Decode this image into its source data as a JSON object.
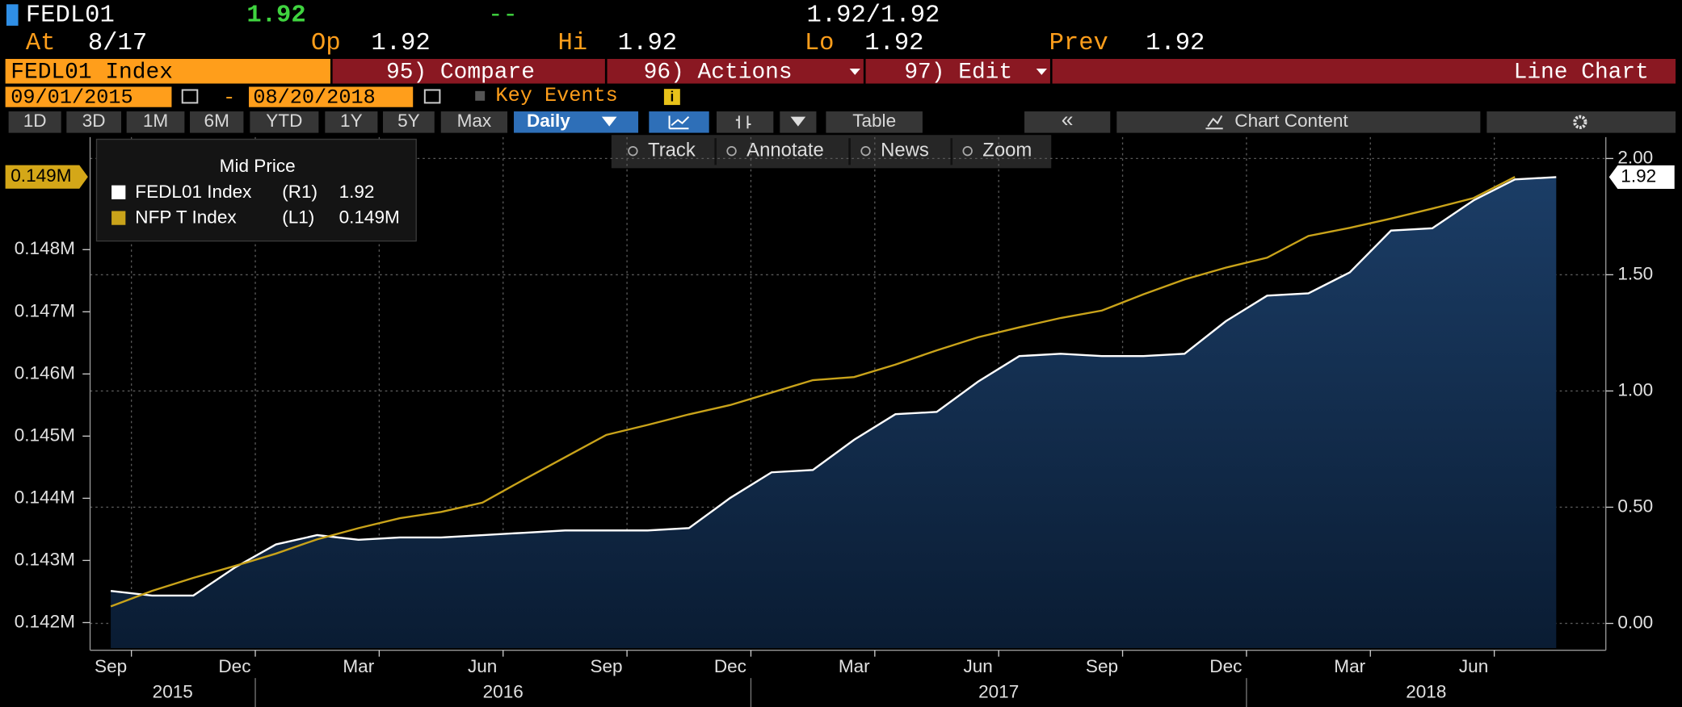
{
  "header": {
    "ticker": "FEDL01",
    "last": "1.92",
    "change": "--",
    "bid_ask": "1.92/1.92",
    "at_label": "At",
    "at": "8/17",
    "open_label": "Op",
    "open": "1.92",
    "high_label": "Hi",
    "high": "1.92",
    "low_label": "Lo",
    "low": "1.92",
    "prev_label": "Prev",
    "prev": "1.92"
  },
  "menu": {
    "security": "FEDL01 Index",
    "compare": "95) Compare",
    "actions": "96) Actions",
    "edit": "97) Edit",
    "view": "Line Chart"
  },
  "range": {
    "start": "09/01/2015",
    "separator": "-",
    "end": "08/20/2018",
    "key_events": "Key Events",
    "info": "i"
  },
  "periods": [
    "1D",
    "3D",
    "1M",
    "6M",
    "YTD",
    "1Y",
    "5Y",
    "Max"
  ],
  "tools": {
    "frequency": "Daily",
    "table": "Table",
    "collapse": "«",
    "content": "Chart Content"
  },
  "chart_tools": [
    "Track",
    "Annotate",
    "News",
    "Zoom"
  ],
  "chart_data": {
    "type": "line",
    "legend_title": "Mid Price",
    "x": [
      "2015-09",
      "2015-10",
      "2015-11",
      "2015-12",
      "2016-01",
      "2016-02",
      "2016-03",
      "2016-04",
      "2016-05",
      "2016-06",
      "2016-07",
      "2016-08",
      "2016-09",
      "2016-10",
      "2016-11",
      "2016-12",
      "2017-01",
      "2017-02",
      "2017-03",
      "2017-04",
      "2017-05",
      "2017-06",
      "2017-07",
      "2017-08",
      "2017-09",
      "2017-10",
      "2017-11",
      "2017-12",
      "2018-01",
      "2018-02",
      "2018-03",
      "2018-04",
      "2018-05",
      "2018-06",
      "2018-07",
      "2018-08"
    ],
    "xticks": [
      {
        "value": "2015-09",
        "label": "Sep"
      },
      {
        "value": "2015-12",
        "label": "Dec"
      },
      {
        "value": "2016-03",
        "label": "Mar"
      },
      {
        "value": "2016-06",
        "label": "Jun"
      },
      {
        "value": "2016-09",
        "label": "Sep"
      },
      {
        "value": "2016-12",
        "label": "Dec"
      },
      {
        "value": "2017-03",
        "label": "Mar"
      },
      {
        "value": "2017-06",
        "label": "Jun"
      },
      {
        "value": "2017-09",
        "label": "Sep"
      },
      {
        "value": "2017-12",
        "label": "Dec"
      },
      {
        "value": "2018-03",
        "label": "Mar"
      },
      {
        "value": "2018-06",
        "label": "Jun"
      }
    ],
    "x_years": [
      "2015",
      "2016",
      "2017",
      "2018"
    ],
    "ylim": [
      0.14159,
      0.14981
    ],
    "yticks": [
      {
        "value": 0.142,
        "label": "0.142M"
      },
      {
        "value": 0.143,
        "label": "0.143M"
      },
      {
        "value": 0.144,
        "label": "0.144M"
      },
      {
        "value": 0.145,
        "label": "0.145M"
      },
      {
        "value": 0.146,
        "label": "0.146M"
      },
      {
        "value": 0.147,
        "label": "0.147M"
      },
      {
        "value": 0.148,
        "label": "0.148M"
      }
    ],
    "y2lim": [
      -0.106,
      2.092
    ],
    "y2ticks": [
      {
        "value": 0,
        "label": "0.00"
      },
      {
        "value": 0.5,
        "label": "0.50"
      },
      {
        "value": 1,
        "label": "1.00"
      },
      {
        "value": 1.5,
        "label": "1.50"
      },
      {
        "value": 2,
        "label": "2.00"
      }
    ],
    "grid": true,
    "series": [
      {
        "name": "FEDL01 Index",
        "axis_tag": "(R1)",
        "last_label": "1.92",
        "axis": "y2",
        "color": "#ffffff",
        "area": true,
        "values": [
          0.14,
          0.12,
          0.12,
          0.24,
          0.34,
          0.38,
          0.36,
          0.37,
          0.37,
          0.38,
          0.39,
          0.4,
          0.4,
          0.4,
          0.41,
          0.54,
          0.65,
          0.66,
          0.79,
          0.9,
          0.91,
          1.04,
          1.15,
          1.16,
          1.15,
          1.15,
          1.16,
          1.3,
          1.41,
          1.42,
          1.51,
          1.69,
          1.7,
          1.82,
          1.91,
          1.92
        ]
      },
      {
        "name": "NFP T Index",
        "axis_tag": "(L1)",
        "last_label": "0.149M",
        "axis": "y",
        "color": "#c9a31a",
        "values": [
          0.14226,
          0.14251,
          0.14272,
          0.14291,
          0.14311,
          0.14334,
          0.14352,
          0.14368,
          0.14378,
          0.14393,
          0.1443,
          0.14466,
          0.14502,
          0.14518,
          0.14535,
          0.1455,
          0.1457,
          0.1459,
          0.14595,
          0.14615,
          0.14638,
          0.14659,
          0.14675,
          0.1469,
          0.14702,
          0.14728,
          0.14752,
          0.14771,
          0.14787,
          0.14822,
          0.14835,
          0.1485,
          0.14866,
          0.14883,
          0.14917,
          null
        ]
      }
    ]
  }
}
